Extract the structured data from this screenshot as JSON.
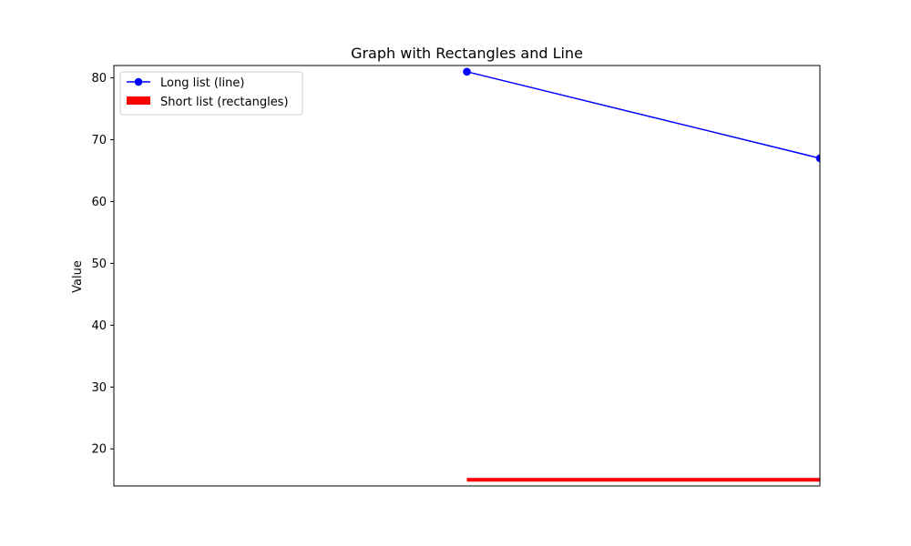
{
  "chart_data": {
    "type": "line",
    "title": "Graph with Rectangles and Line",
    "xlabel": "",
    "ylabel": "Value",
    "x": [
      0,
      1
    ],
    "xlim": [
      -1,
      1
    ],
    "ylim": [
      14,
      82
    ],
    "yticks": [
      20,
      30,
      40,
      50,
      60,
      70,
      80
    ],
    "grid": false,
    "legend_position": "top-left",
    "series": [
      {
        "name": "Long list (line)",
        "type": "line",
        "marker": "circle",
        "color": "#0000ff",
        "values": [
          81,
          67
        ]
      },
      {
        "name": "Short list (rectangles)",
        "type": "rectangle",
        "color": "#ff0000",
        "x_range": [
          0,
          1
        ],
        "y_range": [
          14.7,
          15.3
        ]
      }
    ]
  }
}
